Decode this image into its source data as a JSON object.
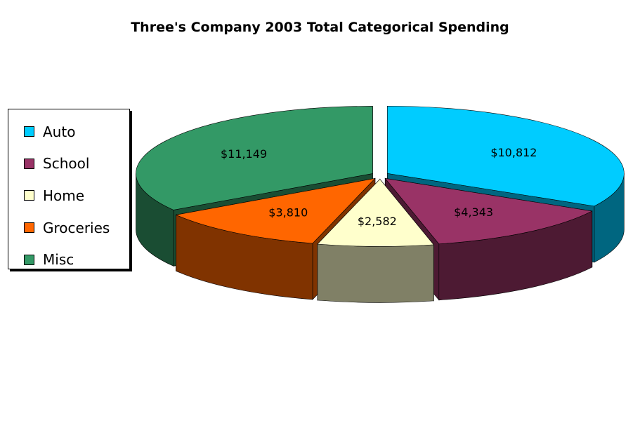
{
  "chart_data": {
    "type": "pie",
    "title": "Three's Company 2003 Total Categorical Spending",
    "slices": [
      {
        "label": "Auto",
        "value": 10812,
        "value_label": "$10,812",
        "color": "#00CCFF",
        "side_color": "#006680"
      },
      {
        "label": "School",
        "value": 4343,
        "value_label": "$4,343",
        "color": "#993366",
        "side_color": "#4D1A33"
      },
      {
        "label": "Home",
        "value": 2582,
        "value_label": "$2,582",
        "color": "#FFFFCC",
        "side_color": "#808066"
      },
      {
        "label": "Groceries",
        "value": 3810,
        "value_label": "$3,810",
        "color": "#FF6600",
        "side_color": "#803300"
      },
      {
        "label": "Misc",
        "value": 11149,
        "value_label": "$11,149",
        "color": "#339966",
        "side_color": "#1A4D33"
      }
    ],
    "exploded": true,
    "three_d": true,
    "legend_position": "left"
  }
}
